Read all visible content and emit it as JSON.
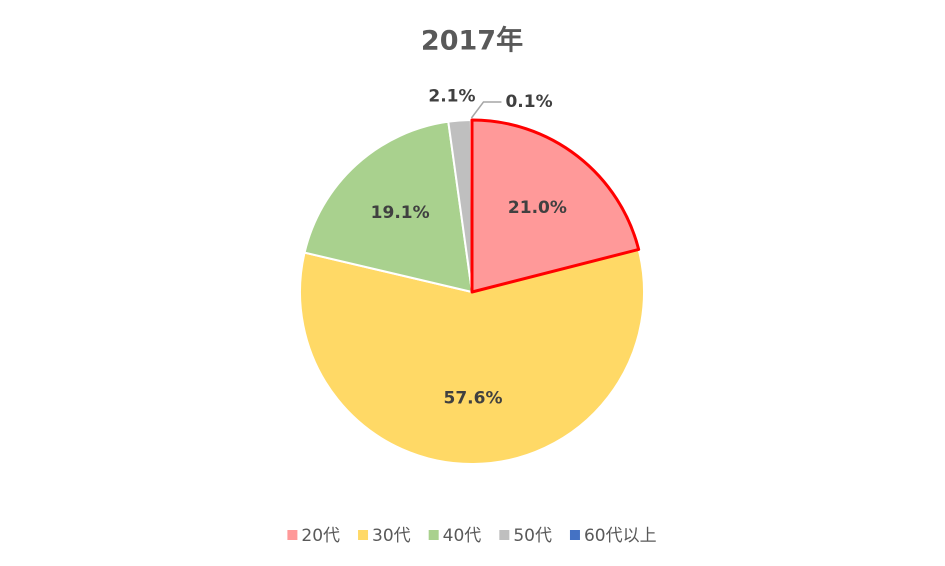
{
  "chart_data": {
    "type": "pie",
    "title": "2017年",
    "categories": [
      "20代",
      "30代",
      "40代",
      "50代",
      "60代以上"
    ],
    "values": [
      21.0,
      57.6,
      19.1,
      2.1,
      0.1
    ],
    "value_labels": [
      "21.0%",
      "57.6%",
      "19.1%",
      "2.1%",
      "0.1%"
    ],
    "colors": [
      "#ff9999",
      "#ffd966",
      "#a9d18e",
      "#bfbfbf",
      "#4472c4"
    ],
    "edge_colors": [
      "#ff0000",
      "#ffffff",
      "#ffffff",
      "#ffffff",
      "#ffffff"
    ],
    "legend": "bottom"
  }
}
